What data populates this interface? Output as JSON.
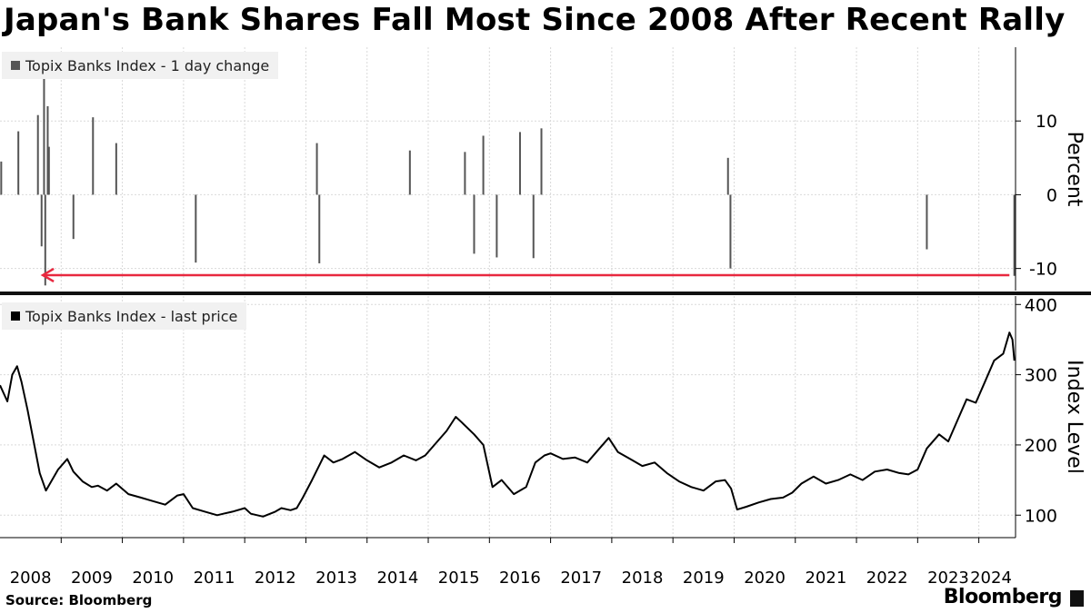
{
  "title": "Japan's Bank Shares Fall Most Since 2008 After Recent Rally",
  "source": "Source: Bloomberg",
  "brand": "Bloomberg",
  "colors": {
    "bar": "#555555",
    "line": "#000000",
    "arrow": "#e8283f",
    "grid": "#d9d9d9",
    "legend_bg": "#f1f1f1"
  },
  "chart_data": [
    {
      "type": "bar",
      "legend": "Topix Banks Index - 1 day change",
      "ylabel": "Percent",
      "yticks": [
        10,
        0,
        -10
      ],
      "ylim": [
        -13,
        20
      ],
      "xlim": [
        2008.0,
        2024.6
      ],
      "grid": true,
      "legend_position": "top-left",
      "x": [
        2008.02,
        2008.3,
        2008.62,
        2008.68,
        2008.72,
        2008.74,
        2008.78,
        2008.8,
        2009.2,
        2009.52,
        2009.9,
        2011.2,
        2013.18,
        2013.22,
        2014.7,
        2015.6,
        2015.75,
        2015.9,
        2016.12,
        2016.5,
        2016.72,
        2016.85,
        2019.9,
        2019.94,
        2023.15,
        2024.58
      ],
      "values": [
        4.5,
        8.6,
        10.8,
        -7.0,
        15.8,
        -12.3,
        12.0,
        6.5,
        -6.0,
        10.5,
        7.0,
        -9.2,
        7.0,
        -9.3,
        6.0,
        5.8,
        -8.0,
        8.0,
        -8.5,
        8.5,
        -8.6,
        9.0,
        5.0,
        -10.0,
        -7.4,
        -11.0
      ],
      "annotation": {
        "type": "arrow",
        "from": [
          2024.5,
          -10.9
        ],
        "to": [
          2008.7,
          -10.9
        ]
      }
    },
    {
      "type": "line",
      "legend": "Topix Banks Index - last price",
      "ylabel": "Index Level",
      "yticks": [
        400,
        300,
        200,
        100
      ],
      "ylim": [
        68,
        412
      ],
      "xlim": [
        2008.0,
        2024.6
      ],
      "xticks": [
        "2008",
        "2009",
        "2010",
        "2011",
        "2012",
        "2013",
        "2014",
        "2015",
        "2016",
        "2017",
        "2018",
        "2019",
        "2020",
        "2021",
        "2022",
        "2023",
        "2024"
      ],
      "grid": true,
      "legend_position": "top-left",
      "x": [
        2008.0,
        2008.12,
        2008.2,
        2008.28,
        2008.35,
        2008.45,
        2008.55,
        2008.65,
        2008.75,
        2008.85,
        2008.95,
        2009.1,
        2009.2,
        2009.35,
        2009.5,
        2009.6,
        2009.75,
        2009.9,
        2010.1,
        2010.3,
        2010.5,
        2010.7,
        2010.9,
        2011.0,
        2011.15,
        2011.35,
        2011.55,
        2011.65,
        2011.8,
        2012.0,
        2012.1,
        2012.3,
        2012.5,
        2012.6,
        2012.75,
        2012.85,
        2012.95,
        2013.1,
        2013.3,
        2013.45,
        2013.6,
        2013.8,
        2014.0,
        2014.2,
        2014.4,
        2014.6,
        2014.8,
        2014.95,
        2015.1,
        2015.3,
        2015.45,
        2015.55,
        2015.75,
        2015.9,
        2016.05,
        2016.2,
        2016.4,
        2016.6,
        2016.75,
        2016.9,
        2017.0,
        2017.2,
        2017.4,
        2017.6,
        2017.8,
        2017.95,
        2018.1,
        2018.3,
        2018.5,
        2018.7,
        2018.9,
        2019.1,
        2019.3,
        2019.5,
        2019.7,
        2019.85,
        2019.95,
        2020.05,
        2020.2,
        2020.4,
        2020.6,
        2020.8,
        2020.95,
        2021.1,
        2021.3,
        2021.5,
        2021.7,
        2021.9,
        2022.1,
        2022.3,
        2022.5,
        2022.7,
        2022.85,
        2023.0,
        2023.15,
        2023.35,
        2023.5,
        2023.65,
        2023.8,
        2023.95,
        2024.1,
        2024.25,
        2024.4,
        2024.5,
        2024.55,
        2024.58
      ],
      "values": [
        285,
        262,
        300,
        312,
        290,
        250,
        205,
        160,
        135,
        150,
        165,
        180,
        162,
        148,
        140,
        142,
        135,
        145,
        130,
        125,
        120,
        115,
        128,
        130,
        110,
        105,
        100,
        102,
        105,
        110,
        102,
        98,
        105,
        110,
        107,
        110,
        125,
        150,
        185,
        175,
        180,
        190,
        178,
        168,
        175,
        185,
        178,
        185,
        200,
        220,
        240,
        232,
        215,
        200,
        140,
        150,
        130,
        140,
        175,
        185,
        188,
        180,
        182,
        175,
        195,
        210,
        190,
        180,
        170,
        175,
        160,
        148,
        140,
        135,
        148,
        150,
        138,
        108,
        112,
        118,
        123,
        125,
        132,
        145,
        155,
        145,
        150,
        158,
        150,
        162,
        165,
        160,
        158,
        165,
        195,
        215,
        205,
        235,
        265,
        260,
        290,
        320,
        330,
        360,
        350,
        320
      ]
    }
  ]
}
